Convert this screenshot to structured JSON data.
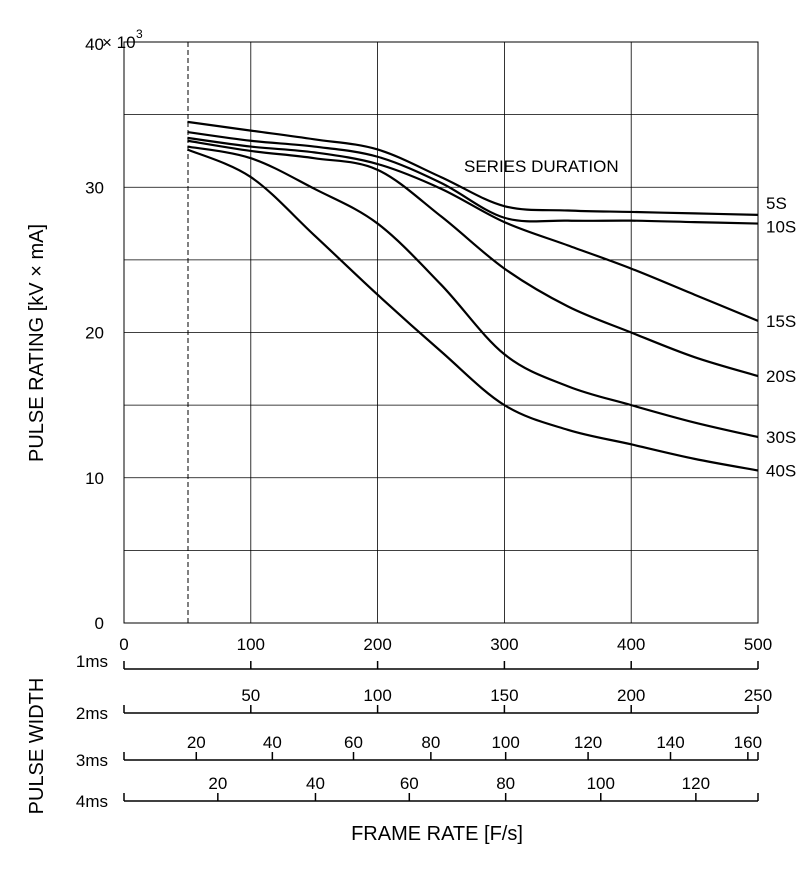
{
  "chart_data": {
    "type": "line",
    "title": "",
    "ylabel": "PULSE RATING  [kV × mA]",
    "y_multiplier": "× 10",
    "y_multiplier_exp": "3",
    "ylim": [
      0,
      40000
    ],
    "y_ticks": [
      0,
      10000,
      20000,
      30000,
      40000
    ],
    "y_tick_labels": [
      "0",
      "10",
      "20",
      "30",
      "40"
    ],
    "xlim": [
      0,
      500
    ],
    "x_ticks": [
      0,
      100,
      200,
      300,
      400,
      500
    ],
    "x_tick_labels": [
      "0",
      "100",
      "200",
      "300",
      "400",
      "500"
    ],
    "legend_title": "SERIES DURATION",
    "series": [
      {
        "name": "5S",
        "x": [
          50,
          100,
          150,
          200,
          250,
          300,
          350,
          400,
          450,
          500
        ],
        "y": [
          34500,
          33900,
          33300,
          32600,
          30700,
          28700,
          28400,
          28300,
          28200,
          28100
        ]
      },
      {
        "name": "10S",
        "x": [
          50,
          100,
          150,
          200,
          250,
          300,
          350,
          400,
          450,
          500
        ],
        "y": [
          33800,
          33200,
          32800,
          32100,
          30300,
          27900,
          27700,
          27700,
          27600,
          27500
        ]
      },
      {
        "name": "15S",
        "x": [
          50,
          100,
          150,
          200,
          250,
          300,
          350,
          400,
          450,
          500
        ],
        "y": [
          33400,
          32800,
          32400,
          31600,
          29900,
          27600,
          26000,
          24400,
          22600,
          20800
        ]
      },
      {
        "name": "20S",
        "x": [
          50,
          100,
          150,
          200,
          250,
          300,
          350,
          400,
          450,
          500
        ],
        "y": [
          33200,
          32500,
          32000,
          31200,
          28000,
          24400,
          21800,
          20000,
          18300,
          17000
        ]
      },
      {
        "name": "30S",
        "x": [
          50,
          100,
          150,
          200,
          250,
          300,
          350,
          400,
          450,
          500
        ],
        "y": [
          32800,
          32000,
          29900,
          27500,
          23300,
          18500,
          16300,
          15000,
          13800,
          12800
        ]
      },
      {
        "name": "40S",
        "x": [
          50,
          100,
          150,
          200,
          250,
          300,
          350,
          400,
          450,
          500
        ],
        "y": [
          32600,
          30700,
          26700,
          22600,
          18700,
          15000,
          13300,
          12300,
          11300,
          10500
        ]
      }
    ],
    "annotations": [
      {
        "type": "vertical-dashed-line",
        "x": 50
      }
    ],
    "xlabel": "FRAME RATE    [F/s]",
    "pulse_width_label": "PULSE WIDTH",
    "pulse_width_scales": [
      {
        "label": "1ms",
        "tick_labels": [
          "0",
          "100",
          "200",
          "300",
          "400",
          "500"
        ],
        "tick_values": [
          0,
          100,
          200,
          300,
          400,
          500
        ]
      },
      {
        "label": "2ms",
        "tick_labels": [
          "50",
          "100",
          "150",
          "200",
          "250"
        ],
        "tick_values": [
          100,
          200,
          300,
          400,
          500
        ]
      },
      {
        "label": "3ms",
        "tick_labels": [
          "20",
          "40",
          "60",
          "80",
          "100",
          "120",
          "140",
          "160"
        ],
        "tick_values": [
          57,
          117,
          181,
          242,
          301,
          366,
          431,
          492
        ]
      },
      {
        "label": "4ms",
        "tick_labels": [
          "20",
          "40",
          "60",
          "80",
          "100",
          "120"
        ],
        "tick_values": [
          74,
          151,
          225,
          301,
          376,
          451
        ]
      }
    ],
    "grid": true,
    "legend_placement": "right-edge"
  }
}
